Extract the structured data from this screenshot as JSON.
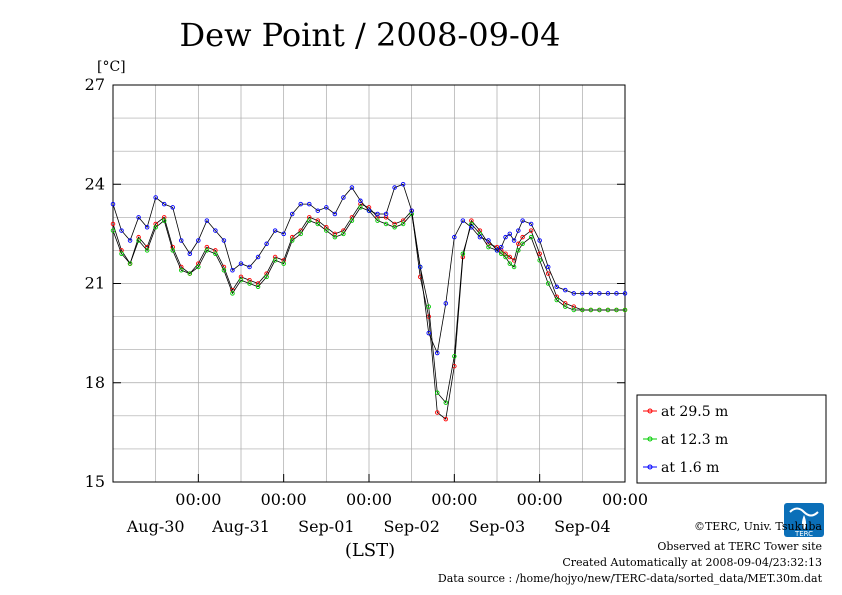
{
  "chart_data": {
    "type": "line",
    "title": "Dew Point / 2008-09-04",
    "ylabel": "[°C]",
    "xlabel": "(LST)",
    "ylim": [
      15,
      27
    ],
    "yticks": [
      "15",
      "18",
      "21",
      "24",
      "27"
    ],
    "xticks": [
      {
        "time": "00:00",
        "date": "Aug-30",
        "day": 1
      },
      {
        "time": "00:00",
        "date": "Aug-31",
        "day": 2
      },
      {
        "time": "00:00",
        "date": "Sep-01",
        "day": 3
      },
      {
        "time": "00:00",
        "date": "Sep-02",
        "day": 4
      },
      {
        "time": "00:00",
        "date": "Sep-03",
        "day": 5
      },
      {
        "time": "00:00",
        "date": "Sep-04",
        "day": 6
      }
    ],
    "x_unit": "days since Aug-29 00:00",
    "xlim": [
      0,
      6
    ],
    "grid": true,
    "legend": "bottom-right",
    "series": [
      {
        "name": "at 29.5 m",
        "color": "#ff0000",
        "x": [
          0.0,
          0.1,
          0.2,
          0.3,
          0.4,
          0.5,
          0.6,
          0.7,
          0.8,
          0.9,
          1.0,
          1.1,
          1.2,
          1.3,
          1.4,
          1.5,
          1.6,
          1.7,
          1.8,
          1.9,
          2.0,
          2.1,
          2.2,
          2.3,
          2.4,
          2.5,
          2.6,
          2.7,
          2.8,
          2.9,
          3.0,
          3.1,
          3.2,
          3.3,
          3.4,
          3.5,
          3.6,
          3.7,
          3.8,
          3.9,
          4.0,
          4.1,
          4.2,
          4.3,
          4.4,
          4.5,
          4.55,
          4.6,
          4.65,
          4.7,
          4.75,
          4.8,
          4.9,
          5.0,
          5.1,
          5.2,
          5.3,
          5.4,
          5.5,
          5.6,
          5.7,
          5.8,
          5.9,
          6.0
        ],
        "values": [
          22.8,
          22.0,
          21.6,
          22.4,
          22.1,
          22.8,
          23.0,
          22.1,
          21.5,
          21.3,
          21.6,
          22.1,
          22.0,
          21.5,
          20.8,
          21.2,
          21.1,
          21.0,
          21.3,
          21.8,
          21.7,
          22.4,
          22.6,
          23.0,
          22.9,
          22.7,
          22.5,
          22.6,
          23.0,
          23.4,
          23.3,
          23.0,
          23.0,
          22.8,
          22.9,
          23.2,
          21.2,
          20.0,
          17.1,
          16.9,
          18.5,
          21.8,
          22.9,
          22.6,
          22.2,
          22.1,
          22.0,
          21.9,
          21.8,
          21.7,
          22.2,
          22.4,
          22.6,
          21.9,
          21.3,
          20.6,
          20.4,
          20.3,
          20.2,
          20.2,
          20.2,
          20.2,
          20.2,
          20.2
        ]
      },
      {
        "name": "at 12.3 m",
        "color": "#00cc00",
        "x": [
          0.0,
          0.1,
          0.2,
          0.3,
          0.4,
          0.5,
          0.6,
          0.7,
          0.8,
          0.9,
          1.0,
          1.1,
          1.2,
          1.3,
          1.4,
          1.5,
          1.6,
          1.7,
          1.8,
          1.9,
          2.0,
          2.1,
          2.2,
          2.3,
          2.4,
          2.5,
          2.6,
          2.7,
          2.8,
          2.9,
          3.0,
          3.1,
          3.2,
          3.3,
          3.4,
          3.5,
          3.6,
          3.7,
          3.8,
          3.9,
          4.0,
          4.1,
          4.2,
          4.3,
          4.4,
          4.5,
          4.55,
          4.6,
          4.65,
          4.7,
          4.75,
          4.8,
          4.9,
          5.0,
          5.1,
          5.2,
          5.3,
          5.4,
          5.5,
          5.6,
          5.7,
          5.8,
          5.9,
          6.0
        ],
        "values": [
          22.6,
          21.9,
          21.6,
          22.3,
          22.0,
          22.7,
          22.9,
          22.0,
          21.4,
          21.3,
          21.5,
          22.0,
          21.9,
          21.4,
          20.7,
          21.1,
          21.0,
          20.9,
          21.2,
          21.7,
          21.6,
          22.3,
          22.5,
          22.9,
          22.8,
          22.6,
          22.4,
          22.5,
          22.9,
          23.3,
          23.2,
          22.9,
          22.8,
          22.7,
          22.8,
          23.1,
          21.5,
          20.3,
          17.7,
          17.4,
          18.8,
          21.9,
          22.8,
          22.5,
          22.1,
          22.0,
          21.9,
          21.8,
          21.6,
          21.5,
          22.0,
          22.2,
          22.4,
          21.7,
          21.0,
          20.5,
          20.3,
          20.2,
          20.2,
          20.2,
          20.2,
          20.2,
          20.2,
          20.2
        ]
      },
      {
        "name": "at 1.6 m",
        "color": "#0000ff",
        "x": [
          0.0,
          0.1,
          0.2,
          0.3,
          0.4,
          0.5,
          0.6,
          0.7,
          0.8,
          0.9,
          1.0,
          1.1,
          1.2,
          1.3,
          1.4,
          1.5,
          1.6,
          1.7,
          1.8,
          1.9,
          2.0,
          2.1,
          2.2,
          2.3,
          2.4,
          2.5,
          2.6,
          2.7,
          2.8,
          2.9,
          3.0,
          3.1,
          3.2,
          3.3,
          3.4,
          3.5,
          3.6,
          3.7,
          3.8,
          3.9,
          4.0,
          4.1,
          4.2,
          4.3,
          4.4,
          4.5,
          4.55,
          4.6,
          4.65,
          4.7,
          4.75,
          4.8,
          4.9,
          5.0,
          5.1,
          5.2,
          5.3,
          5.4,
          5.5,
          5.6,
          5.7,
          5.8,
          5.9,
          6.0
        ],
        "values": [
          23.4,
          22.6,
          22.3,
          23.0,
          22.7,
          23.6,
          23.4,
          23.3,
          22.3,
          21.9,
          22.3,
          22.9,
          22.6,
          22.3,
          21.4,
          21.6,
          21.5,
          21.8,
          22.2,
          22.6,
          22.5,
          23.1,
          23.4,
          23.4,
          23.2,
          23.3,
          23.1,
          23.6,
          23.9,
          23.5,
          23.2,
          23.1,
          23.1,
          23.9,
          24.0,
          23.2,
          21.5,
          19.5,
          18.9,
          20.4,
          22.4,
          22.9,
          22.7,
          22.4,
          22.3,
          22.0,
          22.1,
          22.4,
          22.5,
          22.3,
          22.6,
          22.9,
          22.8,
          22.3,
          21.5,
          20.9,
          20.8,
          20.7,
          20.7,
          20.7,
          20.7,
          20.7,
          20.7,
          20.7
        ]
      }
    ]
  },
  "credits": {
    "copyright": "©TERC, Univ. Tsukuba",
    "observed": "Observed at TERC Tower site",
    "created": "Created Automatically at 2008-09-04/23:32:13",
    "source": "Data source : /home/hojyo/new/TERC-data/sorted_data/MET.30m.dat"
  },
  "logo": {
    "text": "TERC",
    "color": "#0b6fb8"
  }
}
